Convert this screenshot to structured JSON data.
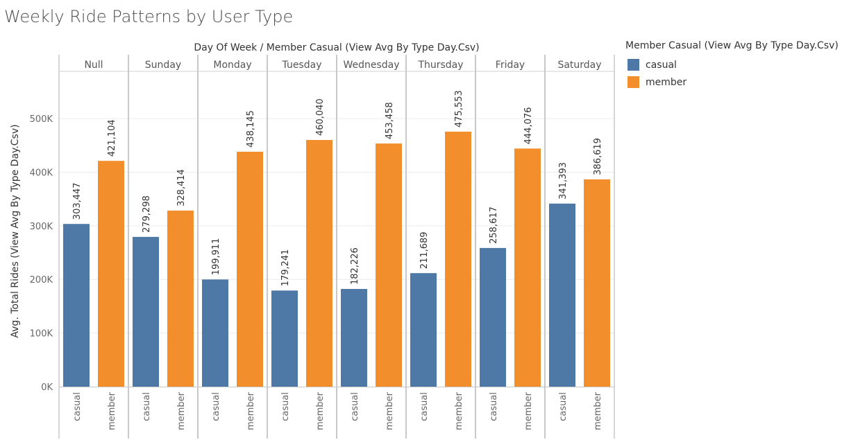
{
  "title": "Weekly Ride Patterns by User Type",
  "colors": {
    "casual": "#4e79a7",
    "member": "#f28e2b"
  },
  "legend": {
    "title": "Member Casual (View Avg By Type Day.Csv)",
    "items": [
      {
        "label": "casual",
        "color": "#4e79a7"
      },
      {
        "label": "member",
        "color": "#f28e2b"
      }
    ]
  },
  "chart_data": {
    "type": "bar",
    "title": "Weekly Ride Patterns by User Type",
    "column_header": "Day Of Week  /  Member Casual (View Avg By Type Day.Csv)",
    "ylabel": "Avg. Total Rides (View Avg By Type Day.Csv)",
    "ylim": [
      0,
      500000
    ],
    "y_ticks": [
      0,
      100000,
      200000,
      300000,
      400000,
      500000
    ],
    "y_tick_labels": [
      "0K",
      "100K",
      "200K",
      "300K",
      "400K",
      "500K"
    ],
    "grid": true,
    "legend_position": "top-right",
    "categories": [
      "Null",
      "Sunday",
      "Monday",
      "Tuesday",
      "Wednesday",
      "Thursday",
      "Friday",
      "Saturday"
    ],
    "series": [
      {
        "name": "casual",
        "values": [
          303447,
          279298,
          199911,
          179241,
          182226,
          211689,
          258617,
          341393
        ],
        "labels": [
          "303,447",
          "279,298",
          "199,911",
          "179,241",
          "182,226",
          "211,689",
          "258,617",
          "341,393"
        ]
      },
      {
        "name": "member",
        "values": [
          421104,
          328414,
          438145,
          460040,
          453458,
          475553,
          444076,
          386619
        ],
        "labels": [
          "421,104",
          "328,414",
          "438,145",
          "460,040",
          "453,458",
          "475,553",
          "444,076",
          "386,619"
        ]
      }
    ]
  }
}
